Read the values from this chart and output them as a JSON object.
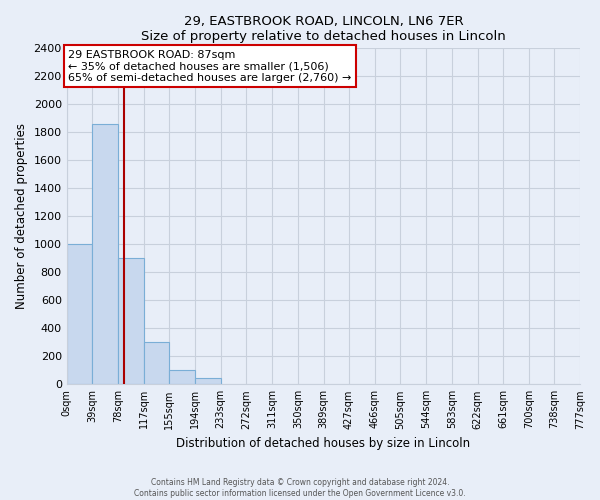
{
  "title": "29, EASTBROOK ROAD, LINCOLN, LN6 7ER",
  "subtitle": "Size of property relative to detached houses in Lincoln",
  "xlabel": "Distribution of detached houses by size in Lincoln",
  "ylabel": "Number of detached properties",
  "bin_edges": [
    0,
    39,
    78,
    117,
    155,
    194,
    233,
    272,
    311,
    350,
    389,
    427,
    466,
    505,
    544,
    583,
    622,
    661,
    700,
    738,
    777
  ],
  "bar_heights": [
    1000,
    1860,
    900,
    300,
    100,
    45,
    0,
    0,
    0,
    0,
    0,
    0,
    0,
    0,
    0,
    0,
    0,
    0,
    0,
    0
  ],
  "bar_color": "#c8d8ee",
  "bar_edge_color": "#7aaed6",
  "property_size": 87,
  "property_line_color": "#aa0000",
  "annotation_text": "29 EASTBROOK ROAD: 87sqm\n← 35% of detached houses are smaller (1,506)\n65% of semi-detached houses are larger (2,760) →",
  "annotation_box_color": "#ffffff",
  "annotation_box_edge": "#cc0000",
  "ylim": [
    0,
    2400
  ],
  "yticks": [
    0,
    200,
    400,
    600,
    800,
    1000,
    1200,
    1400,
    1600,
    1800,
    2000,
    2200,
    2400
  ],
  "tick_labels": [
    "0sqm",
    "39sqm",
    "78sqm",
    "117sqm",
    "155sqm",
    "194sqm",
    "233sqm",
    "272sqm",
    "311sqm",
    "350sqm",
    "389sqm",
    "427sqm",
    "466sqm",
    "505sqm",
    "544sqm",
    "583sqm",
    "622sqm",
    "661sqm",
    "700sqm",
    "738sqm",
    "777sqm"
  ],
  "footer_line1": "Contains HM Land Registry data © Crown copyright and database right 2024.",
  "footer_line2": "Contains public sector information licensed under the Open Government Licence v3.0.",
  "bg_color": "#e8eef8",
  "plot_bg_color": "#e8eef8",
  "grid_color": "#c8d0dc"
}
